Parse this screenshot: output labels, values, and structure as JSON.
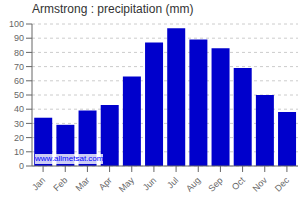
{
  "chart_data": {
    "type": "bar",
    "title": "Armstrong : precipitation (mm)",
    "categories": [
      "Jan",
      "Feb",
      "Mar",
      "Apr",
      "May",
      "Jun",
      "Jul",
      "Aug",
      "Sep",
      "Oct",
      "Nov",
      "Dec"
    ],
    "values": [
      34,
      29,
      39,
      43,
      63,
      87,
      97,
      89,
      83,
      69,
      50,
      38
    ],
    "color": "#0000CC",
    "ylim": [
      0,
      100
    ],
    "yticks": [
      0,
      10,
      20,
      30,
      40,
      50,
      60,
      70,
      80,
      90,
      100
    ],
    "grid": true,
    "annotations": [
      "www.allmetsat.com"
    ]
  }
}
